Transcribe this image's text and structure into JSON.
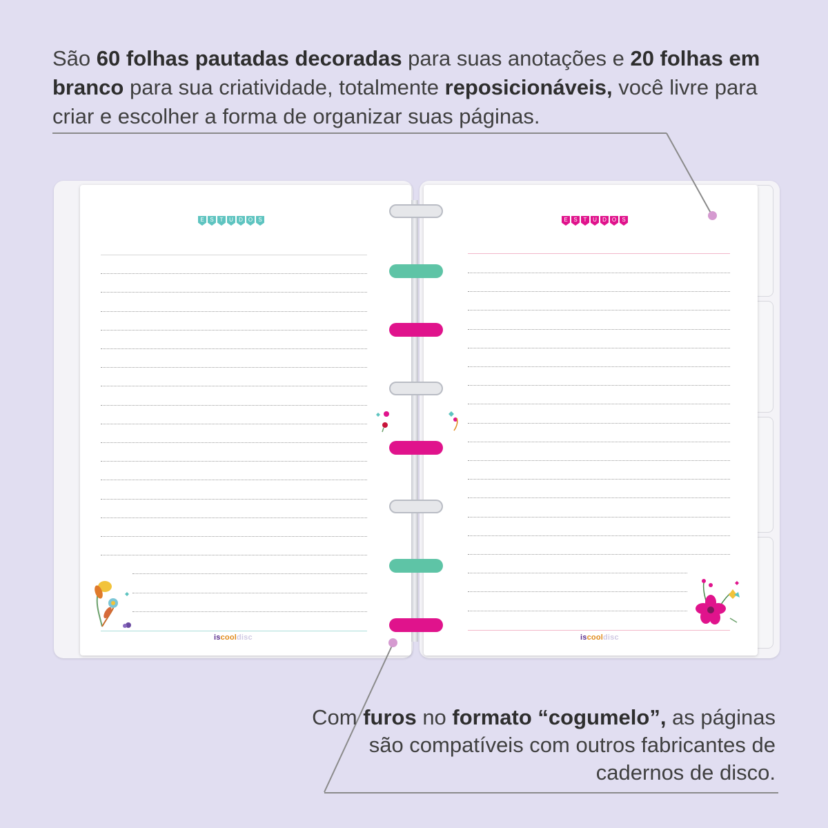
{
  "top_text": {
    "s1": "São ",
    "b1": "60 folhas pautadas decoradas",
    "s2": " para suas anotações e ",
    "b2": "20 folhas em branco",
    "s3": " para sua criatividade, totalmente ",
    "b3": "reposicionáveis,",
    "s4": " você livre para criar e escolher a forma de organizar suas páginas."
  },
  "bottom_text": {
    "s1": "Com ",
    "b1": "furos",
    "s2": " no ",
    "b2": "formato “cogumelo”,",
    "s3": " as páginas são compatíveis com outros fabricantes de cadernos de disco."
  },
  "notebook": {
    "left_page": {
      "banner": "ESTUDOS",
      "logo_a": "is",
      "logo_b": "cool",
      "logo_c": "disc"
    },
    "right_page": {
      "banner": "ESTUDOS",
      "logo_a": "is",
      "logo_b": "cool",
      "logo_c": "disc"
    }
  },
  "colors": {
    "background": "#e1def1",
    "ring_teal": "#5ec4a6",
    "ring_pink": "#e0138c",
    "banner_left": "#5ec4c0",
    "banner_right": "#e0138c",
    "callout_dot": "#d59ad0"
  }
}
